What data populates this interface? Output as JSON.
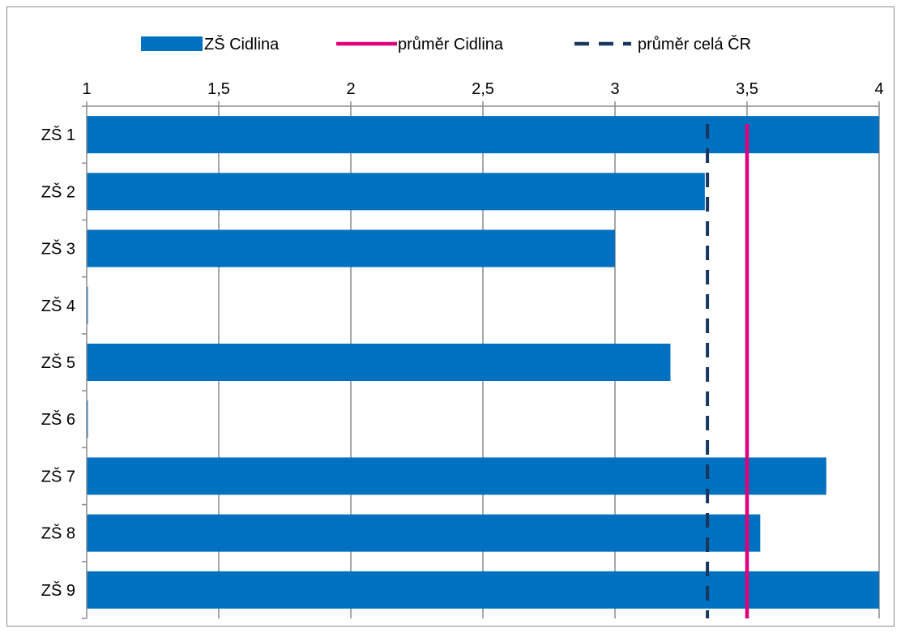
{
  "chart_data": {
    "type": "bar",
    "orientation": "horizontal",
    "categories": [
      "ZŠ 1",
      "ZŠ 2",
      "ZŠ 3",
      "ZŠ 4",
      "ZŠ 5",
      "ZŠ 6",
      "ZŠ 7",
      "ZŠ 8",
      "ZŠ 9"
    ],
    "series": [
      {
        "name": "ZŠ Cidlina",
        "values": [
          4.0,
          3.34,
          3.0,
          1.0,
          3.21,
          1.0,
          3.8,
          3.55,
          4.0
        ],
        "color": "#0070c0"
      }
    ],
    "reference_lines": [
      {
        "name": "průměr Cidlina",
        "value": 3.5,
        "color": "#e0007a",
        "style": "solid"
      },
      {
        "name": "průměr celá ČR",
        "value": 3.35,
        "color": "#17375e",
        "style": "dashed"
      }
    ],
    "x_ticks": [
      1,
      1.5,
      2,
      2.5,
      3,
      3.5,
      4
    ],
    "x_tick_labels": [
      "1",
      "1,5",
      "2",
      "2,5",
      "3",
      "3,5",
      "4"
    ],
    "xlim": [
      1,
      4
    ],
    "x_axis_position": "top",
    "grid": true,
    "legend_position": "top",
    "title": "",
    "xlabel": "",
    "ylabel": ""
  }
}
